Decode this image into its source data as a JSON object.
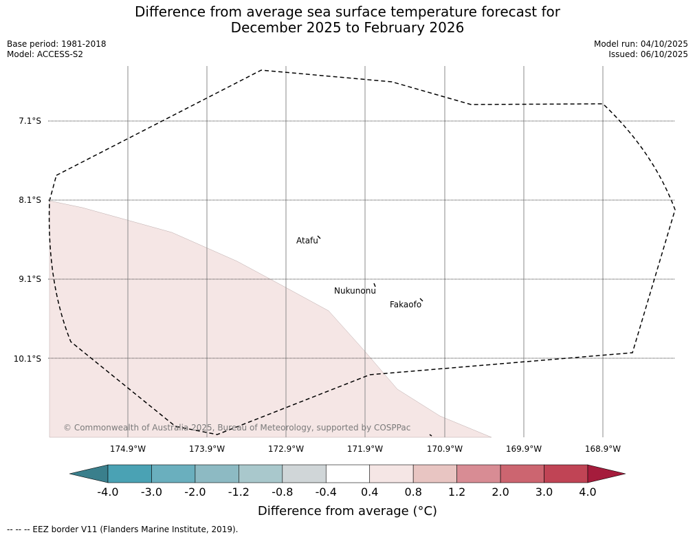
{
  "title_line1": "Difference from average sea surface temperature forecast for",
  "title_line2": "December 2025 to February 2026",
  "meta": {
    "base_period": "Base period: 1981-2018",
    "model": "Model: ACCESS-S2",
    "model_run": "Model run: 04/10/2025",
    "issued": "Issued: 06/10/2025"
  },
  "map": {
    "latitudes": [
      "7.1°S",
      "8.1°S",
      "9.1°S",
      "10.1°S"
    ],
    "longitudes": [
      "174.9°W",
      "173.9°W",
      "172.9°W",
      "171.9°W",
      "170.9°W",
      "169.9°W",
      "168.9°W"
    ],
    "places": [
      {
        "name": "Atafu"
      },
      {
        "name": "Nukunonu"
      },
      {
        "name": "Fakaofo"
      }
    ],
    "credit": "© Commonwealth of Australia 2025, Bureau of Meteorology, supported by COSPPac",
    "shaded_anomaly_range": "0.4 to 0.8"
  },
  "colorbar": {
    "ticks": [
      "-4.0",
      "-3.0",
      "-2.0",
      "-1.2",
      "-0.8",
      "-0.4",
      "0.4",
      "0.8",
      "1.2",
      "2.0",
      "3.0",
      "4.0"
    ],
    "colors": [
      "#3a7f8c",
      "#4aa2b4",
      "#6aafbe",
      "#8dbac3",
      "#a9c8cc",
      "#d0d6d8",
      "#ffffff",
      "#f5e6e5",
      "#e8c5c2",
      "#d88c94",
      "#cc6570",
      "#c04455",
      "#a51c3c"
    ],
    "label": "Difference from average (°C)"
  },
  "legend": {
    "text": "-- -- -- EEZ border V11 (Flanders Marine Institute, 2019)."
  }
}
